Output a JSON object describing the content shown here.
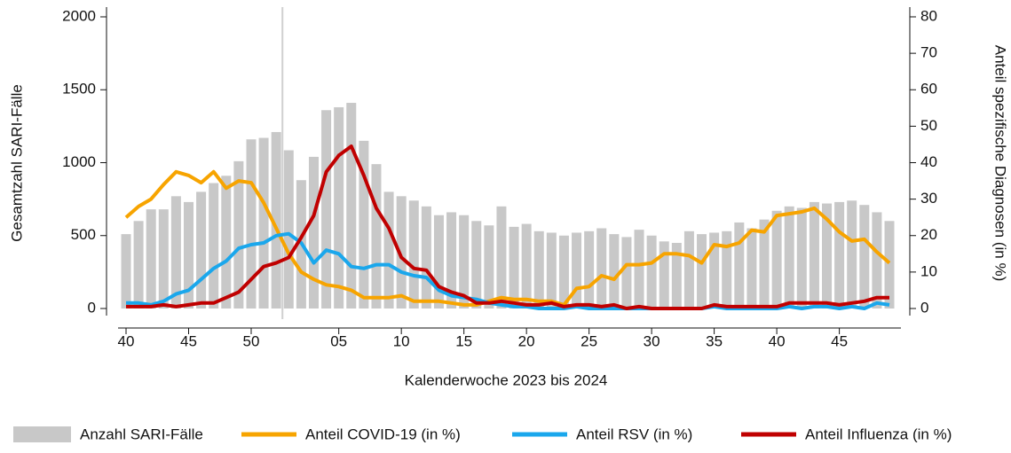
{
  "chart_data": {
    "type": "bar",
    "x_label": "Kalenderwoche 2023 bis 2024",
    "y_label": "Gesamtzahl SARI-Fälle",
    "y2_label": "Anteil spezifische Diagnosen (in %)",
    "categories": [
      "40",
      null,
      null,
      null,
      null,
      "45",
      null,
      null,
      null,
      null,
      "50",
      null,
      null,
      null,
      null,
      null,
      null,
      "05",
      null,
      null,
      null,
      null,
      "10",
      null,
      null,
      null,
      null,
      "15",
      null,
      null,
      null,
      null,
      "20",
      null,
      null,
      null,
      null,
      "25",
      null,
      null,
      null,
      null,
      "30",
      null,
      null,
      null,
      null,
      "35",
      null,
      null,
      null,
      null,
      "40",
      null,
      null,
      null,
      null,
      "45",
      null,
      null,
      null,
      null
    ],
    "ylim": [
      0,
      2000
    ],
    "yticks": [
      0,
      500,
      1000,
      1500,
      2000
    ],
    "y2lim": [
      0,
      80
    ],
    "y2ticks": [
      0,
      10,
      20,
      30,
      40,
      50,
      60,
      70,
      80
    ],
    "series": [
      {
        "name": "Anzahl SARI-Fälle",
        "type": "bar",
        "color": "#c8c8c8",
        "values": [
          510,
          600,
          680,
          680,
          770,
          730,
          800,
          860,
          910,
          1010,
          1160,
          1170,
          1210,
          1085,
          880,
          1040,
          1360,
          1380,
          1410,
          1150,
          990,
          800,
          770,
          740,
          700,
          640,
          660,
          640,
          600,
          570,
          700,
          560,
          580,
          530,
          520,
          500,
          520,
          530,
          550,
          510,
          490,
          540,
          500,
          460,
          450,
          530,
          510,
          520,
          530,
          590,
          550,
          610,
          670,
          700,
          690,
          730,
          720,
          730,
          740,
          710,
          660,
          600
        ]
      },
      {
        "name": "Anteil COVID-19 (in %)",
        "type": "line",
        "axis": "y2",
        "color": "#f7a400",
        "values": [
          25,
          28,
          30,
          34,
          37.5,
          36.5,
          34.5,
          37.5,
          33,
          35,
          34.5,
          29,
          22,
          15,
          10,
          8,
          6.5,
          6,
          5,
          3,
          3,
          3,
          3.5,
          2,
          2,
          2,
          1.5,
          1,
          1,
          2,
          3,
          2.5,
          2.5,
          2,
          2,
          1,
          5.5,
          6,
          9,
          8,
          12,
          12,
          12.5,
          15,
          15,
          14.5,
          12.5,
          17.5,
          17,
          18,
          21.5,
          21,
          25.5,
          26,
          26.5,
          27.5,
          24.5,
          21,
          18.5,
          19,
          15.5,
          12.5
        ]
      },
      {
        "name": "Anteil RSV (in %)",
        "type": "line",
        "axis": "y2",
        "color": "#1aa7ec",
        "values": [
          1.5,
          1.5,
          1,
          2,
          4,
          5,
          8,
          11,
          13,
          16.5,
          17.5,
          18,
          20,
          20.5,
          18,
          12.5,
          16,
          15,
          11.5,
          11,
          12,
          12,
          10,
          9,
          8.5,
          5,
          3.5,
          3,
          2.5,
          1.5,
          1,
          0.5,
          0.5,
          0,
          0,
          0,
          0.5,
          0,
          0,
          0,
          0,
          0,
          0,
          0,
          0,
          0,
          0,
          0.5,
          0,
          0,
          0,
          0,
          0,
          0.5,
          0,
          0.5,
          0.5,
          0,
          0.5,
          0,
          1.5,
          1
        ]
      },
      {
        "name": "Anteil Influenza (in %)",
        "type": "line",
        "axis": "y2",
        "color": "#c00000",
        "values": [
          0.5,
          0.5,
          0.5,
          1,
          0.5,
          1,
          1.5,
          1.5,
          3,
          4.5,
          8,
          11.5,
          12.5,
          14,
          19.5,
          25.5,
          37.5,
          42,
          44.5,
          36.5,
          27.5,
          22,
          14,
          11,
          10.5,
          6,
          4.5,
          3.5,
          1.5,
          1.5,
          2,
          1.5,
          1,
          1,
          1.5,
          0.5,
          1,
          1,
          0.5,
          1,
          0,
          0.5,
          0,
          0,
          0,
          0,
          0,
          1,
          0.5,
          0.5,
          0.5,
          0.5,
          0.5,
          1.5,
          1.5,
          1.5,
          1.5,
          1,
          1.5,
          2,
          3,
          3
        ]
      }
    ]
  }
}
